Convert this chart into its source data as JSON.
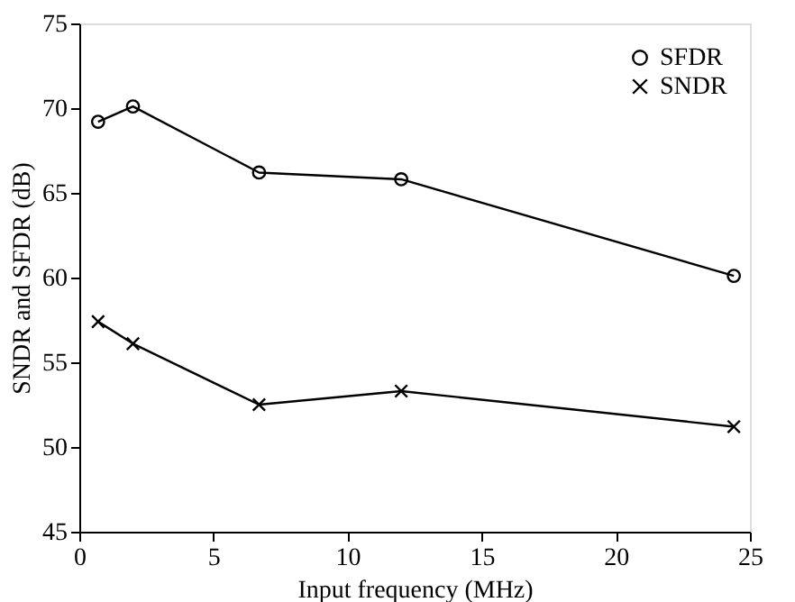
{
  "chart_data": {
    "type": "line",
    "xlabel": "Input frequency (MHz)",
    "ylabel": "SNDR and SFDR (dB)",
    "x": [
      0.7,
      2.0,
      6.7,
      12.0,
      24.4
    ],
    "series": [
      {
        "name": "SFDR",
        "color": "#000000",
        "marker": "circle",
        "values": [
          69.2,
          70.1,
          66.2,
          65.8,
          60.1
        ]
      },
      {
        "name": "SNDR",
        "color": "#000000",
        "marker": "cross",
        "values": [
          57.4,
          56.1,
          52.5,
          53.3,
          51.2
        ]
      }
    ],
    "xlim": [
      0,
      25
    ],
    "xticks": [
      0,
      5,
      10,
      15,
      20,
      25
    ],
    "ylim": [
      45,
      75
    ],
    "yticks": [
      45,
      50,
      55,
      60,
      65,
      70,
      75
    ],
    "grid": false,
    "legend": "top right",
    "line_style": "solid"
  }
}
